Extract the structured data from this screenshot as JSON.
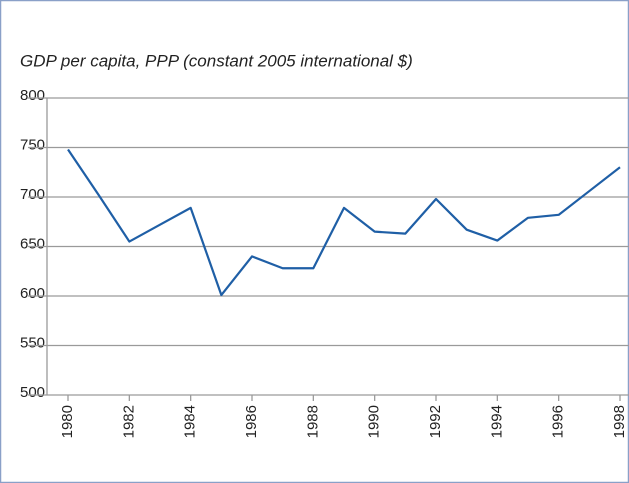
{
  "chart_data": {
    "type": "line",
    "title": "GDP per capita, PPP (constant 2005 international $)",
    "x": [
      1980,
      1981,
      1982,
      1983,
      1984,
      1985,
      1986,
      1987,
      1988,
      1989,
      1990,
      1991,
      1992,
      1993,
      1994,
      1995,
      1996,
      1997,
      1998
    ],
    "series": [
      {
        "color": "#1f5fa6",
        "values": [
          748,
          702,
          655,
          672,
          689,
          601,
          640,
          628,
          628,
          689,
          665,
          663,
          698,
          667,
          656,
          679,
          682,
          706,
          730
        ]
      }
    ],
    "xlim": [
      1980,
      1998
    ],
    "xticks": [
      1980,
      1982,
      1984,
      1986,
      1988,
      1990,
      1992,
      1994,
      1996,
      1998
    ],
    "ylim": [
      500,
      800
    ],
    "yticks": [
      500,
      550,
      600,
      650,
      700,
      750,
      800
    ],
    "grid": true
  }
}
